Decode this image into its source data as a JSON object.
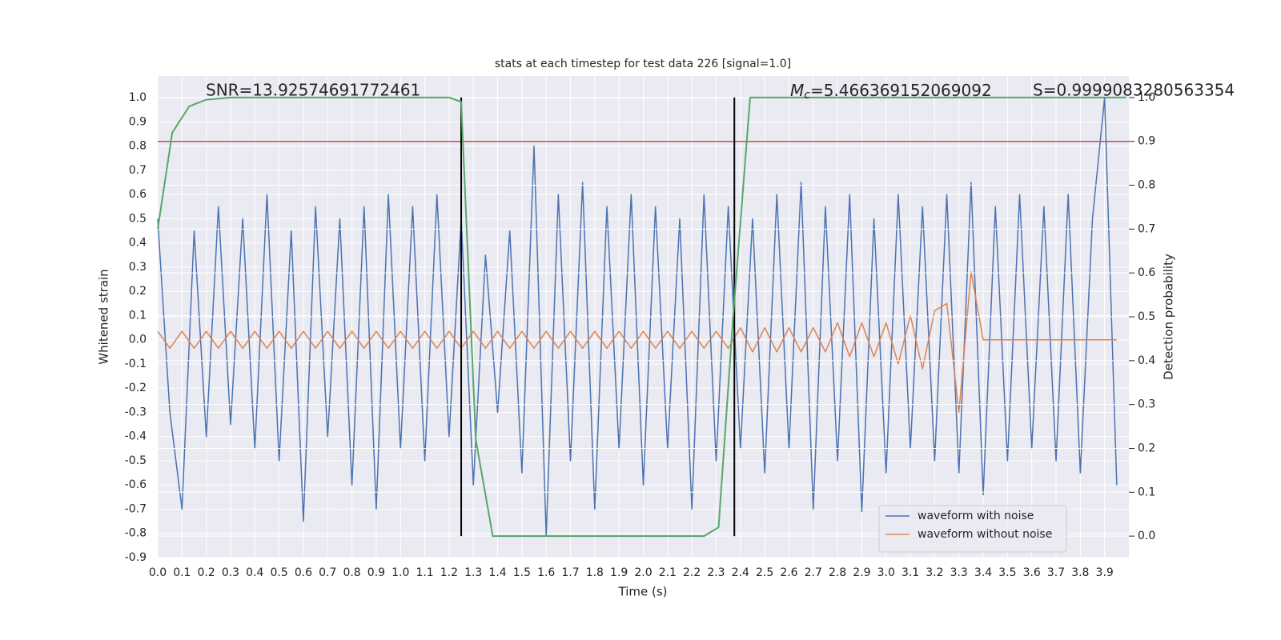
{
  "chart_data": {
    "type": "line",
    "title": "stats at each timestep for test data 226 [signal=1.0]",
    "x_label": "Time (s)",
    "y_label": "Whitened strain",
    "y2_label": "Detection probability",
    "annotations": {
      "snr": "SNR=13.92574691772461",
      "mc": {
        "symbol": "M",
        "subscript": "c",
        "text": "=5.466369152069092"
      },
      "s": "S=0.9999083280563354"
    },
    "x": [
      0,
      0.05,
      0.1,
      0.15,
      0.2,
      0.25,
      0.3,
      0.35,
      0.4,
      0.45,
      0.5,
      0.55,
      0.6,
      0.65,
      0.7,
      0.75,
      0.8,
      0.85,
      0.9,
      0.95,
      1.0,
      1.05,
      1.1,
      1.15,
      1.2,
      1.25,
      1.3,
      1.35,
      1.4,
      1.45,
      1.5,
      1.55,
      1.6,
      1.65,
      1.7,
      1.75,
      1.8,
      1.85,
      1.9,
      1.95,
      2.0,
      2.05,
      2.1,
      2.15,
      2.2,
      2.25,
      2.3,
      2.35,
      2.4,
      2.45,
      2.5,
      2.55,
      2.6,
      2.65,
      2.7,
      2.75,
      2.8,
      2.85,
      2.9,
      2.95,
      3.0,
      3.05,
      3.1,
      3.15,
      3.2,
      3.25,
      3.3,
      3.35,
      3.4,
      3.45,
      3.5,
      3.55,
      3.6,
      3.65,
      3.7,
      3.75,
      3.8,
      3.85,
      3.9,
      3.95
    ],
    "series": [
      {
        "name": "waveform with noise",
        "color": "#4c72b0",
        "values": [
          0.5,
          -0.3,
          -0.7,
          0.45,
          -0.4,
          0.55,
          -0.35,
          0.5,
          -0.45,
          0.6,
          -0.5,
          0.45,
          -0.75,
          0.55,
          -0.4,
          0.5,
          -0.6,
          0.55,
          -0.7,
          0.6,
          -0.45,
          0.55,
          -0.5,
          0.6,
          -0.4,
          0.5,
          -0.6,
          0.35,
          -0.3,
          0.45,
          -0.55,
          0.8,
          -0.81,
          0.6,
          -0.5,
          0.65,
          -0.7,
          0.55,
          -0.45,
          0.6,
          -0.6,
          0.55,
          -0.45,
          0.5,
          -0.7,
          0.6,
          -0.5,
          0.55,
          -0.45,
          0.5,
          -0.55,
          0.6,
          -0.45,
          0.65,
          -0.7,
          0.55,
          -0.5,
          0.6,
          -0.71,
          0.5,
          -0.55,
          0.6,
          -0.45,
          0.55,
          -0.5,
          0.6,
          -0.55,
          0.65,
          -0.64,
          0.55,
          -0.5,
          0.6,
          -0.45,
          0.55,
          -0.5,
          0.6,
          -0.55,
          0.5,
          1.0,
          -0.6
        ]
      },
      {
        "name": "waveform without noise",
        "color": "#dd8452",
        "values": [
          0.035,
          -0.035,
          0.035,
          -0.035,
          0.035,
          -0.035,
          0.035,
          -0.035,
          0.035,
          -0.035,
          0.035,
          -0.035,
          0.035,
          -0.035,
          0.035,
          -0.035,
          0.035,
          -0.035,
          0.035,
          -0.035,
          0.035,
          -0.035,
          0.035,
          -0.035,
          0.035,
          -0.035,
          0.035,
          -0.035,
          0.035,
          -0.035,
          0.035,
          -0.035,
          0.035,
          -0.035,
          0.035,
          -0.035,
          0.035,
          -0.035,
          0.035,
          -0.035,
          0.035,
          -0.035,
          0.035,
          -0.035,
          0.035,
          -0.035,
          0.035,
          -0.035,
          0.05,
          -0.05,
          0.05,
          -0.05,
          0.05,
          -0.05,
          0.05,
          -0.05,
          0.07,
          -0.07,
          0.07,
          -0.07,
          0.07,
          -0.1,
          0.1,
          -0.12,
          0.12,
          0.15,
          -0.3,
          0.28,
          0,
          0,
          0,
          0,
          0,
          0,
          0,
          0,
          0,
          0,
          0,
          0
        ]
      },
      {
        "axis": "y2",
        "color": "#55a868",
        "x": [
          0,
          0.06,
          0.13,
          0.2,
          0.3,
          1.2,
          1.25,
          1.31,
          1.38,
          1.44,
          2.25,
          2.31,
          2.37,
          2.44,
          3.99
        ],
        "values": [
          0.7,
          0.92,
          0.98,
          0.995,
          1.0,
          1.0,
          0.99,
          0.22,
          0.0,
          0.0,
          0.0,
          0.02,
          0.5,
          1.0,
          1.0
        ]
      }
    ],
    "threshold": 0.9,
    "threshold_color": "#c44e52",
    "vlines": [
      1.25,
      2.375
    ],
    "xlim": [
      0,
      4.0
    ],
    "ylim": [
      -0.9,
      1.09
    ],
    "y2lim": [
      -0.049,
      1.049
    ],
    "xticks": [
      {
        "value": 0,
        "label": "0.0"
      },
      0.1,
      0.2,
      0.3,
      0.4,
      0.5,
      0.6,
      0.7,
      0.8,
      0.9,
      {
        "value": 1,
        "label": "1.0"
      },
      1.1,
      1.2,
      1.3,
      1.4,
      1.5,
      1.6,
      1.7,
      1.8,
      1.9,
      {
        "value": 2,
        "label": "2.0"
      },
      2.1,
      2.2,
      2.3,
      2.4,
      2.5,
      2.6,
      2.7,
      2.8,
      2.9,
      {
        "value": 3,
        "label": "3.0"
      },
      3.1,
      3.2,
      3.3,
      3.4,
      3.5,
      3.6,
      3.7,
      3.8,
      3.9
    ],
    "yticks": [
      -0.9,
      -0.8,
      -0.7,
      -0.6,
      -0.5,
      -0.4,
      -0.3,
      -0.2,
      -0.1,
      {
        "value": 0,
        "label": "0.0"
      },
      0.1,
      0.2,
      0.3,
      0.4,
      0.5,
      0.6,
      0.7,
      0.8,
      0.9,
      {
        "value": 1,
        "label": "1.0"
      }
    ],
    "y2ticks": [
      {
        "value": 0,
        "label": "0.0"
      },
      0.1,
      0.2,
      0.3,
      0.4,
      0.5,
      0.6,
      0.7,
      0.8,
      0.9,
      {
        "value": 1,
        "label": "1.0"
      }
    ],
    "grid": true,
    "legend": "lower right"
  }
}
